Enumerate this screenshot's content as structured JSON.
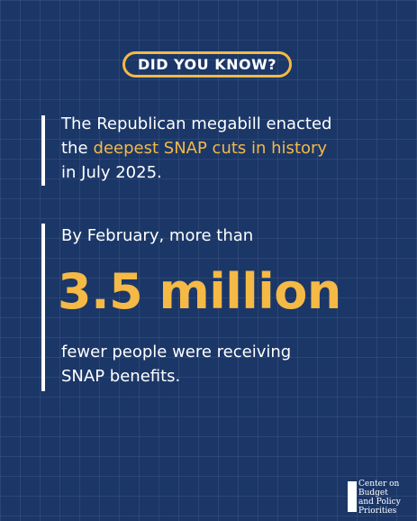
{
  "badge": "DID YOU KNOW?",
  "statement": {
    "line1": "The Republican megabill enacted",
    "line2_lead": "the",
    "line2_highlight": "deepest SNAP cuts in history",
    "line3": "in July 2025."
  },
  "stat": {
    "intro": "By February, more than",
    "figure": "3.5 million",
    "outro_lines": [
      "fewer people were receiving",
      "SNAP benefits."
    ]
  },
  "logo": {
    "lines": [
      "Center on",
      "Budget",
      "and Policy",
      "Priorities"
    ]
  }
}
